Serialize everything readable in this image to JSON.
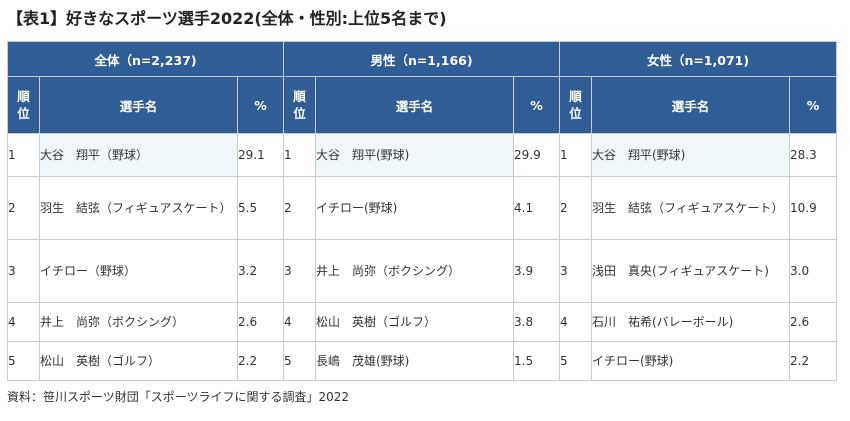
{
  "title": "【表1】好きなスポーツ選手2022(全体・性別:上位5名まで)",
  "groups": [
    {
      "label": "全体（n=2,237)"
    },
    {
      "label": "男性（n=1,166)"
    },
    {
      "label": "女性（n=1,071)"
    }
  ],
  "headers": {
    "rank": "順位",
    "name": "選手名",
    "pct": "%"
  },
  "rows": [
    {
      "rank": "1",
      "cells": [
        {
          "name": "大谷　翔平（野球）",
          "pct": "29.1"
        },
        {
          "name": "大谷　翔平(野球)",
          "pct": "29.9"
        },
        {
          "name": "大谷　翔平(野球)",
          "pct": "28.3"
        }
      ]
    },
    {
      "rank": "2",
      "cells": [
        {
          "name": "羽生　結弦（フィギュアスケート）",
          "pct": "5.5"
        },
        {
          "name": "イチロー(野球)",
          "pct": "4.1"
        },
        {
          "name": "羽生　結弦（フィギュアスケート）",
          "pct": "10.9"
        }
      ]
    },
    {
      "rank": "3",
      "cells": [
        {
          "name": "イチロー（野球）",
          "pct": "3.2"
        },
        {
          "name": "井上　尚弥（ボクシング）",
          "pct": "3.9"
        },
        {
          "name": "浅田　真央(フィギュアスケート)",
          "pct": "3.0"
        }
      ]
    },
    {
      "rank": "4",
      "cells": [
        {
          "name": "井上　尚弥（ボクシング）",
          "pct": "2.6"
        },
        {
          "name": "松山　英樹（ゴルフ）",
          "pct": "3.8"
        },
        {
          "name": "石川　祐希(バレーボール)",
          "pct": "2.6"
        }
      ]
    },
    {
      "rank": "5",
      "cells": [
        {
          "name": "松山　英樹（ゴルフ）",
          "pct": "2.2"
        },
        {
          "name": "長嶋　茂雄(野球)",
          "pct": "1.5"
        },
        {
          "name": "イチロー(野球)",
          "pct": "2.2"
        }
      ]
    }
  ],
  "source": "資料：笹川スポーツ財団「スポーツライフに関する調査」2022",
  "colors": {
    "header_bg": "#2f5d96",
    "header_text": "#ffffff",
    "highlight_bg": "#f0f7fb",
    "border": "#c8ccd2"
  }
}
